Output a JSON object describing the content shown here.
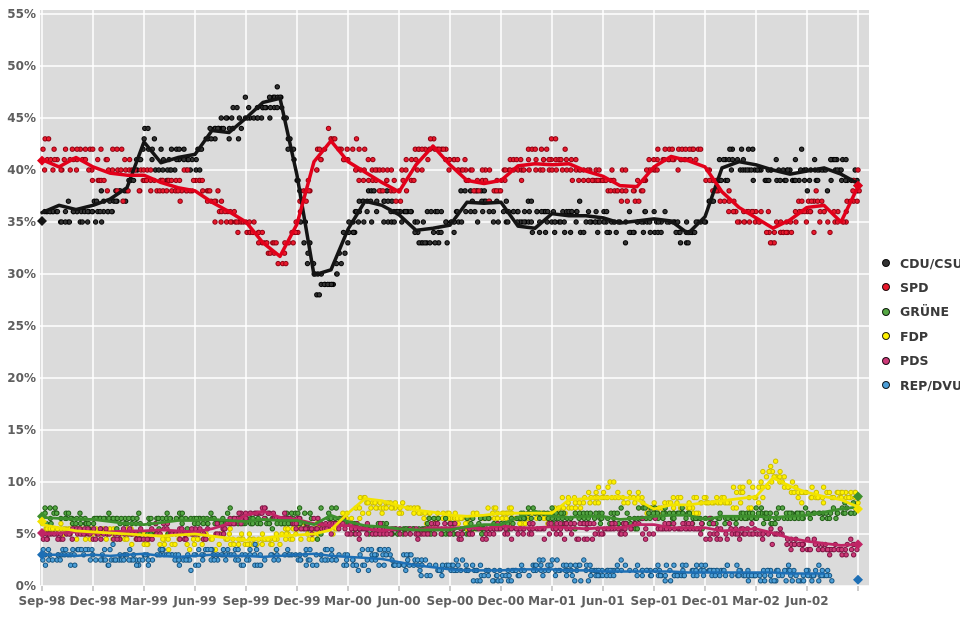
{
  "colors": {
    "page_background": "#ffffff",
    "plot_background": "#dbdbdb",
    "gridline": "#ffffff",
    "axis_tick_mark": "#9a9a9a",
    "axis_label_text": "#5f5f5f",
    "legend_text": "#3a3a3a"
  },
  "y_axis": {
    "ticks": [
      {
        "label": "55%",
        "value": 55
      },
      {
        "label": "50%",
        "value": 50
      },
      {
        "label": "45%",
        "value": 45
      },
      {
        "label": "40%",
        "value": 40
      },
      {
        "label": "35%",
        "value": 35
      },
      {
        "label": "30%",
        "value": 30
      },
      {
        "label": "25%",
        "value": 25
      },
      {
        "label": "20%",
        "value": 20
      },
      {
        "label": "15%",
        "value": 15
      },
      {
        "label": "10%",
        "value": 10
      },
      {
        "label": "5%",
        "value": 5
      },
      {
        "label": "0%",
        "value": 0
      }
    ]
  },
  "x_axis": {
    "ticks": [
      {
        "label": "Sep-98",
        "quarter": 0
      },
      {
        "label": "Dec-98",
        "quarter": 1
      },
      {
        "label": "Mar-99",
        "quarter": 2
      },
      {
        "label": "Jun-99",
        "quarter": 3
      },
      {
        "label": "Sep-99",
        "quarter": 4
      },
      {
        "label": "Dec-99",
        "quarter": 5
      },
      {
        "label": "Mar-00",
        "quarter": 6
      },
      {
        "label": "Jun-00",
        "quarter": 7
      },
      {
        "label": "Sep-00",
        "quarter": 8
      },
      {
        "label": "Dec-00",
        "quarter": 9
      },
      {
        "label": "Mar-01",
        "quarter": 10
      },
      {
        "label": "Jun-01",
        "quarter": 11
      },
      {
        "label": "Sep-01",
        "quarter": 12
      },
      {
        "label": "Dec-01",
        "quarter": 13
      },
      {
        "label": "Mar-02",
        "quarter": 14
      },
      {
        "label": "Jun-02",
        "quarter": 15
      }
    ]
  },
  "legend": {
    "position": "right",
    "items": [
      {
        "id": "cdu-csu",
        "label": "CDU/CSU"
      },
      {
        "id": "spd",
        "label": "SPD"
      },
      {
        "id": "gruene",
        "label": "GRÜNE"
      },
      {
        "id": "fdp",
        "label": "FDP"
      },
      {
        "id": "pds",
        "label": "PDS"
      },
      {
        "id": "rep-dvu",
        "label": "REP/DVU"
      }
    ]
  },
  "chart_data": {
    "type": "scatter",
    "description": "German party polling, individual polls (dots) with moving-average trend lines; diamonds mark the 1998 and 2002 federal election results.",
    "ylim": [
      0,
      55
    ],
    "grid": true,
    "legend_position": "right",
    "months": [
      "1998-09",
      "1998-10",
      "1998-11",
      "1998-12",
      "1999-01",
      "1999-02",
      "1999-03",
      "1999-04",
      "1999-05",
      "1999-06",
      "1999-07",
      "1999-08",
      "1999-09",
      "1999-10",
      "1999-11",
      "1999-12",
      "2000-01",
      "2000-02",
      "2000-03",
      "2000-04",
      "2000-05",
      "2000-06",
      "2000-07",
      "2000-08",
      "2000-09",
      "2000-10",
      "2000-11",
      "2000-12",
      "2001-01",
      "2001-02",
      "2001-03",
      "2001-04",
      "2001-05",
      "2001-06",
      "2001-07",
      "2001-08",
      "2001-09",
      "2001-10",
      "2001-11",
      "2001-12",
      "2002-01",
      "2002-02",
      "2002-03",
      "2002-04",
      "2002-05",
      "2002-06",
      "2002-07",
      "2002-08",
      "2002-09"
    ],
    "series": [
      {
        "name": "CDU/CSU",
        "line_color": "#141414",
        "dot_fill": "#333333",
        "dot_stroke": "#000000",
        "line_width": 3.5,
        "quantize": 1.0,
        "spread": 1.0,
        "bias": 0.7,
        "monthly_trend": [
          35.9,
          36.6,
          36.2,
          36.6,
          37.2,
          38.3,
          42.7,
          40.7,
          41.2,
          41.5,
          43.8,
          43.6,
          45.0,
          46.5,
          46.9,
          39.5,
          29.9,
          30.4,
          34.3,
          37.0,
          36.6,
          35.7,
          34.2,
          34.4,
          34.7,
          36.9,
          36.8,
          36.9,
          34.6,
          34.4,
          35.8,
          35.6,
          35.6,
          35.4,
          34.9,
          35.1,
          35.3,
          35.1,
          33.9,
          35.5,
          40.2,
          40.8,
          40.5,
          40.0,
          39.6,
          39.9,
          40.2,
          39.6,
          38.7
        ],
        "election_1998": 35.1,
        "election_2002": 38.5
      },
      {
        "name": "SPD",
        "line_color": "#e2001a",
        "dot_fill": "#e8192c",
        "dot_stroke": "#8f0011",
        "line_width": 3.5,
        "quantize": 1.0,
        "spread": 1.0,
        "bias": 0.7,
        "monthly_trend": [
          41.0,
          40.3,
          41.2,
          40.3,
          39.7,
          39.5,
          39.5,
          38.8,
          38.3,
          38.0,
          36.9,
          36.0,
          35.0,
          33.0,
          31.7,
          34.8,
          40.8,
          42.8,
          40.8,
          39.8,
          38.8,
          37.9,
          40.5,
          42.3,
          40.5,
          39.0,
          38.7,
          39.0,
          40.4,
          40.6,
          40.5,
          40.6,
          39.9,
          39.4,
          38.5,
          38.4,
          40.3,
          41.3,
          40.9,
          40.3,
          37.9,
          36.4,
          35.4,
          34.4,
          35.2,
          36.4,
          36.6,
          35.0,
          38.4
        ],
        "election_1998": 40.9,
        "election_2002": 38.5
      },
      {
        "name": "GRÜNE",
        "line_color": "#3d8f2d",
        "dot_fill": "#55a744",
        "dot_stroke": "#1f5c14",
        "line_width": 2.8,
        "quantize": 0.5,
        "spread": 0.5,
        "bias": 0.35,
        "monthly_trend": [
          6.6,
          6.5,
          6.4,
          6.4,
          6.2,
          6.0,
          5.9,
          6.1,
          6.3,
          6.3,
          6.4,
          6.3,
          6.2,
          6.4,
          6.3,
          6.3,
          5.9,
          6.8,
          6.2,
          5.8,
          5.7,
          5.5,
          5.4,
          5.4,
          5.4,
          5.7,
          5.9,
          5.9,
          6.6,
          7.2,
          6.7,
          6.6,
          6.7,
          6.7,
          6.4,
          6.5,
          6.7,
          6.8,
          6.8,
          6.4,
          6.7,
          6.7,
          6.7,
          6.6,
          6.7,
          6.8,
          7.1,
          7.4,
          7.6
        ],
        "election_1998": 6.7,
        "election_2002": 8.6
      },
      {
        "name": "FDP",
        "line_color": "#f2e300",
        "dot_fill": "#fff200",
        "dot_stroke": "#cbbd00",
        "line_width": 2.8,
        "quantize": 0.5,
        "spread": 0.6,
        "bias": 0.35,
        "monthly_trend": [
          5.9,
          5.6,
          5.3,
          5.2,
          5.1,
          5.0,
          4.9,
          4.8,
          4.9,
          5.0,
          4.8,
          4.6,
          4.4,
          4.6,
          4.8,
          4.9,
          5.0,
          5.4,
          7.0,
          8.4,
          8.2,
          7.7,
          7.3,
          7.1,
          6.8,
          6.7,
          6.8,
          7.0,
          7.0,
          7.0,
          7.0,
          8.3,
          8.4,
          8.5,
          8.6,
          8.3,
          7.4,
          7.8,
          7.8,
          8.0,
          8.2,
          8.4,
          8.6,
          10.4,
          9.6,
          9.0,
          8.6,
          8.3,
          7.6
        ],
        "election_1998": 6.2,
        "election_2002": 7.4
      },
      {
        "name": "PDS",
        "line_color": "#c02565",
        "dot_fill": "#cc3a78",
        "dot_stroke": "#7e1443",
        "line_width": 2.8,
        "quantize": 0.5,
        "spread": 0.5,
        "bias": 0.35,
        "monthly_trend": [
          5.0,
          5.1,
          5.2,
          5.1,
          5.2,
          5.3,
          5.3,
          5.4,
          5.3,
          5.2,
          5.5,
          6.0,
          6.8,
          7.2,
          6.6,
          6.4,
          6.0,
          5.8,
          5.8,
          5.5,
          5.3,
          5.5,
          5.4,
          5.6,
          5.6,
          5.6,
          5.5,
          5.8,
          5.6,
          5.6,
          5.7,
          5.6,
          5.5,
          5.6,
          5.6,
          5.9,
          5.9,
          5.6,
          5.6,
          5.6,
          5.3,
          5.4,
          5.5,
          5.1,
          4.6,
          4.3,
          4.1,
          3.9,
          4.0
        ],
        "election_1998": 5.1,
        "election_2002": 4.0
      },
      {
        "name": "REP/DVU",
        "line_color": "#1d6fb5",
        "dot_fill": "#4d9fd8",
        "dot_stroke": "#14537f",
        "line_width": 2.5,
        "quantize": 0.5,
        "spread": 0.6,
        "bias": 0.35,
        "monthly_trend": [
          3.0,
          3.0,
          2.9,
          3.0,
          2.9,
          3.0,
          3.1,
          2.9,
          2.8,
          2.9,
          3.0,
          2.9,
          2.9,
          2.8,
          2.9,
          3.0,
          3.1,
          2.9,
          2.8,
          2.7,
          2.6,
          2.3,
          2.0,
          1.8,
          1.6,
          1.5,
          1.5,
          1.5,
          1.6,
          1.6,
          1.6,
          1.5,
          1.5,
          1.4,
          1.4,
          1.4,
          1.4,
          1.4,
          1.3,
          1.3,
          1.3,
          1.3,
          1.3,
          1.3,
          1.2,
          1.2,
          1.2,
          null,
          null
        ],
        "election_1998": 3.0,
        "election_2002": 0.6
      }
    ],
    "scatter_render": {
      "seed": 1337,
      "pollsters_per_party": 3,
      "skip_probability": 0.18,
      "note": "dots are weekly poll readings scattered around each trend"
    }
  }
}
